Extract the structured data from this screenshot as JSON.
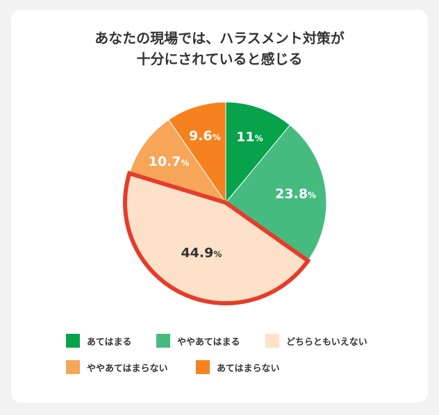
{
  "title_lines": [
    "あなたの現場では、ハラスメント対策が",
    "十分にされていると感じる"
  ],
  "chart_data": {
    "type": "pie",
    "title": "あなたの現場では、ハラスメント対策が十分にされていると感じる",
    "slices": [
      {
        "label": "あてはまる",
        "value": 11,
        "display": "11",
        "color": "#07a24a",
        "text_color": "#ffffff",
        "highlight": false
      },
      {
        "label": "ややあてはまる",
        "value": 23.8,
        "display": "23.8",
        "color": "#45bb80",
        "text_color": "#ffffff",
        "highlight": false
      },
      {
        "label": "どちらともいえない",
        "value": 44.9,
        "display": "44.9",
        "color": "#fde1c8",
        "text_color": "#333333",
        "highlight": true
      },
      {
        "label": "ややあてはまらない",
        "value": 10.7,
        "display": "10.7",
        "color": "#f6a559",
        "text_color": "#ffffff",
        "highlight": false
      },
      {
        "label": "あてはまらない",
        "value": 9.6,
        "display": "9.6",
        "color": "#f5821f",
        "text_color": "#ffffff",
        "highlight": false
      }
    ],
    "unit": "%",
    "highlight_color": "#e53d2b",
    "legend_position": "bottom"
  }
}
